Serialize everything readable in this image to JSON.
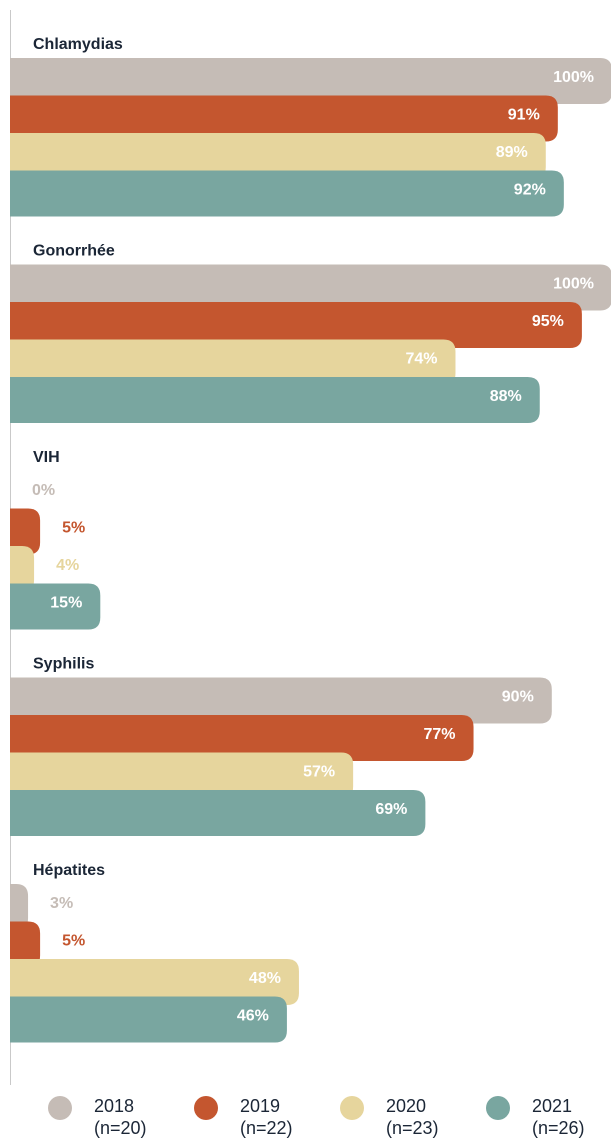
{
  "chart_data": {
    "type": "bar",
    "orientation": "horizontal",
    "categories": [
      "Chlamydias",
      "Gonorrhée",
      "VIH",
      "Syphilis",
      "Hépatites"
    ],
    "xlim": [
      0,
      100
    ],
    "series": [
      {
        "name": "2018",
        "n_label": "(n=20)",
        "color": "#c5bcb6",
        "values": [
          100,
          100,
          0,
          90,
          3
        ],
        "value_labels": [
          "100%",
          "100%",
          "0%",
          "90%",
          "3%"
        ]
      },
      {
        "name": "2019",
        "n_label": "(n=22)",
        "color": "#c4562f",
        "values": [
          91,
          95,
          5,
          77,
          5
        ],
        "value_labels": [
          "91%",
          "95%",
          "5%",
          "77%",
          "5%"
        ]
      },
      {
        "name": "2020",
        "n_label": "(n=23)",
        "color": "#e6d59d",
        "values": [
          89,
          74,
          4,
          57,
          48
        ],
        "value_labels": [
          "89%",
          "74%",
          "4%",
          "57%",
          "48%"
        ]
      },
      {
        "name": "2021",
        "n_label": "(n=26)",
        "color": "#79a6a0",
        "values": [
          92,
          88,
          15,
          69,
          46
        ],
        "value_labels": [
          "92%",
          "88%",
          "15%",
          "69%",
          "46%"
        ]
      }
    ]
  }
}
